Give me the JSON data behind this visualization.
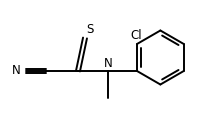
{
  "bg_color": "#ffffff",
  "line_color": "#000000",
  "line_width": 1.4,
  "font_size": 8.5,
  "figsize": [
    2.2,
    1.33
  ],
  "dpi": 100,
  "N_label": "N",
  "S_label": "S",
  "Cl_label": "Cl",
  "CN_label": "N"
}
